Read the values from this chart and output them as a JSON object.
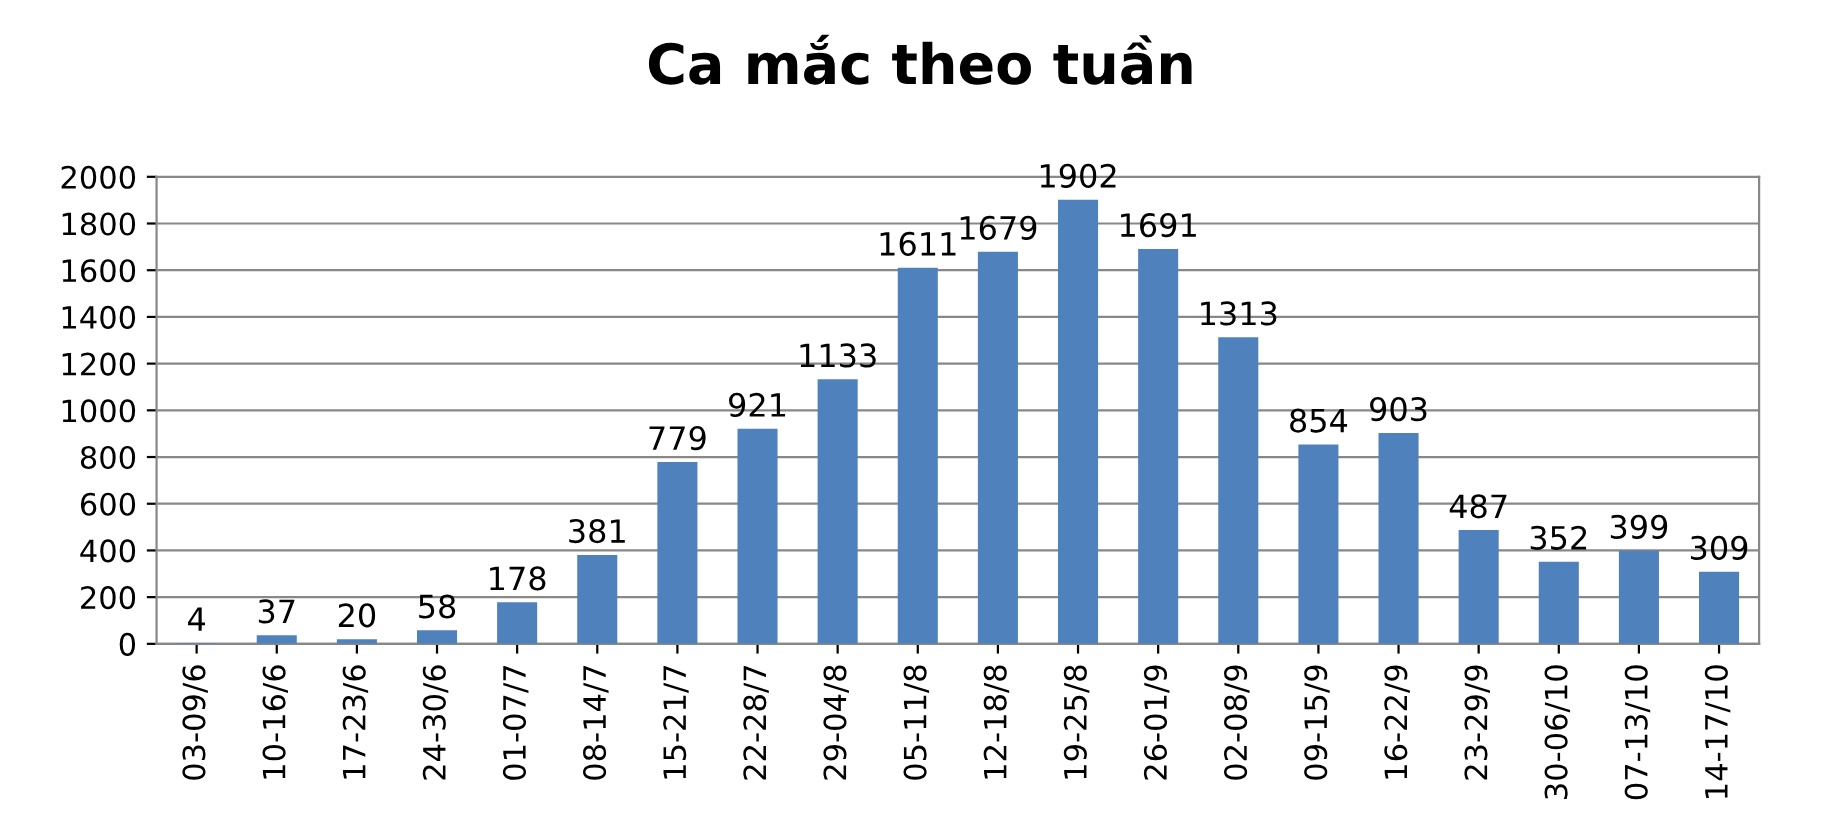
{
  "chart_data": {
    "type": "bar",
    "title": "Ca mắc theo tuần",
    "categories": [
      "03-09/6",
      "10-16/6",
      "17-23/6",
      "24-30/6",
      "01-07/7",
      "08-14/7",
      "15-21/7",
      "22-28/7",
      "29-04/8",
      "05-11/8",
      "12-18/8",
      "19-25/8",
      "26-01/9",
      "02-08/9",
      "09-15/9",
      "16-22/9",
      "23-29/9",
      "30-06/10",
      "07-13/10",
      "14-17/10"
    ],
    "values": [
      4,
      37,
      20,
      58,
      178,
      381,
      779,
      921,
      1133,
      1611,
      1679,
      1902,
      1691,
      1313,
      854,
      903,
      487,
      352,
      399,
      309
    ],
    "color": "#4f81bd",
    "ylim": [
      0,
      2000
    ],
    "yticks": [
      0,
      200,
      400,
      600,
      800,
      1000,
      1200,
      1400,
      1600,
      1800,
      2000
    ],
    "grid": "y",
    "data_labels": true
  }
}
